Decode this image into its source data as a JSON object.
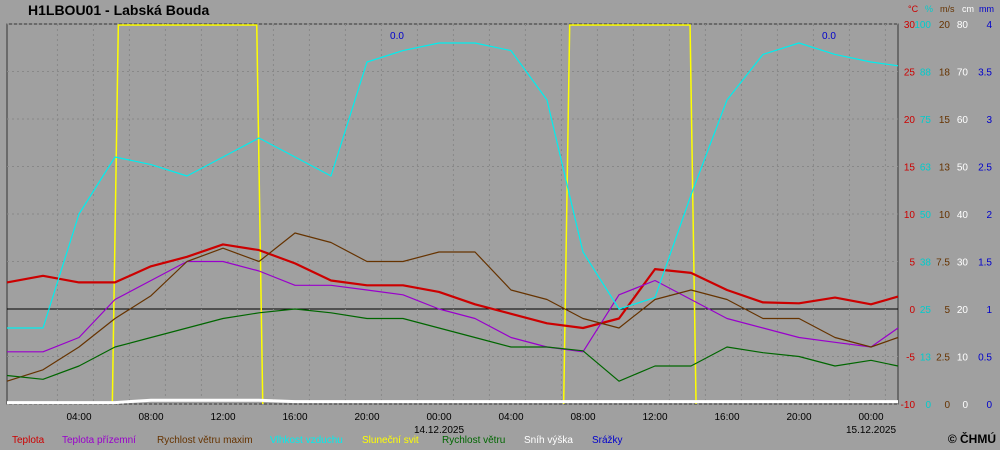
{
  "title": "H1LBOU01 - Labská Bouda",
  "copyright": "© ČHMÚ",
  "units": [
    {
      "label": "°C",
      "color": "#cc0000"
    },
    {
      "label": "%",
      "color": "#00cccc"
    },
    {
      "label": "m/s",
      "color": "#663300"
    },
    {
      "label": "cm",
      "color": "#ffffff"
    },
    {
      "label": "mm",
      "color": "#0000cc"
    }
  ],
  "legend": [
    {
      "label": "Teplota",
      "color": "#cc0000"
    },
    {
      "label": "Teplota přízemní",
      "color": "#9900cc"
    },
    {
      "label": "Rychlost větru maxim",
      "color": "#663300"
    },
    {
      "label": "Vlhkost vzduchu",
      "color": "#00eeee"
    },
    {
      "label": "Sluneční svit",
      "color": "#ffff00"
    },
    {
      "label": "Rychlost větru",
      "color": "#006600"
    },
    {
      "label": "Sníh výška",
      "color": "#ffffff"
    },
    {
      "label": "Srážky",
      "color": "#0000cc"
    }
  ],
  "chart_data": {
    "type": "line",
    "x_tick_labels": [
      "04:00",
      "08:00",
      "12:00",
      "16:00",
      "20:00",
      "00:00",
      "04:00",
      "08:00",
      "12:00",
      "16:00",
      "20:00",
      "00:00"
    ],
    "date_labels": [
      "14.12.2025",
      "15.12.2025"
    ],
    "precip_labels": [
      "0.0",
      "0.0"
    ],
    "axes": {
      "temp_c": {
        "ticks": [
          "30",
          "25",
          "20",
          "15",
          "10",
          "5",
          "0",
          "-5",
          "-10"
        ],
        "color": "#cc0000",
        "range": [
          -10,
          30
        ]
      },
      "humidity_pct": {
        "ticks": [
          "100",
          "88",
          "75",
          "63",
          "50",
          "38",
          "25",
          "13",
          "0"
        ],
        "color": "#00cccc",
        "range": [
          0,
          100
        ]
      },
      "wind_ms": {
        "ticks": [
          "20",
          "18",
          "15",
          "13",
          "10",
          "7.5",
          "5",
          "2.5",
          "0"
        ],
        "color": "#663300",
        "range": [
          0,
          20
        ]
      },
      "snow_cm": {
        "ticks": [
          "80",
          "70",
          "60",
          "50",
          "40",
          "30",
          "20",
          "10",
          "0"
        ],
        "color": "#ffffff",
        "range": [
          0,
          80
        ]
      },
      "precip_mm": {
        "ticks": [
          "4",
          "3.5",
          "3",
          "2.5",
          "2",
          "1.5",
          "1",
          "0.5",
          "0"
        ],
        "color": "#0000cc",
        "range": [
          0,
          4
        ]
      }
    },
    "x_hours": [
      0,
      2,
      4,
      6,
      8,
      10,
      12,
      14,
      16,
      18,
      20,
      22,
      24,
      26,
      28,
      30,
      32,
      34,
      36,
      38,
      40,
      42,
      44,
      46,
      48,
      49.5
    ],
    "series": [
      {
        "name": "Teplota",
        "color": "#cc0000",
        "values": [
          2.8,
          3.5,
          2.8,
          2.8,
          4.5,
          5.5,
          6.8,
          6.2,
          4.8,
          3.0,
          2.5,
          2.5,
          1.8,
          0.5,
          -0.5,
          -1.5,
          -2.0,
          -1.0,
          4.2,
          3.8,
          2.0,
          0.7,
          0.6,
          1.2,
          0.5,
          1.3
        ]
      },
      {
        "name": "Teplota přízemní",
        "color": "#9900cc",
        "values": [
          -4.5,
          -4.5,
          -3.0,
          1.0,
          3.0,
          5.0,
          5.0,
          4.0,
          2.5,
          2.5,
          2.0,
          1.5,
          0.0,
          -1.0,
          -3.0,
          -4.0,
          -4.5,
          1.5,
          3.0,
          1.0,
          -1.0,
          -2.0,
          -3.0,
          -3.5,
          -4.0,
          -2.0
        ]
      },
      {
        "name": "Rychlost větru maxim",
        "color": "#663300",
        "values": [
          1.2,
          1.8,
          3.0,
          4.5,
          5.7,
          7.5,
          8.2,
          7.5,
          9.0,
          8.5,
          7.5,
          7.5,
          8.0,
          8.0,
          6.0,
          5.5,
          4.5,
          4.0,
          5.5,
          6.0,
          5.5,
          4.5,
          4.5,
          3.5,
          3.0,
          3.5
        ]
      },
      {
        "name": "Vlhkost vzduchu",
        "color": "#00eeee",
        "values": [
          20,
          20,
          50,
          65,
          63,
          60,
          65,
          70,
          65,
          60,
          90,
          93,
          95,
          95,
          93,
          80,
          40,
          25,
          28,
          55,
          80,
          92,
          95,
          92,
          90,
          89
        ]
      },
      {
        "name": "Sluneční svit",
        "color": "#ffff00",
        "values": [
          0,
          0,
          0,
          100,
          100,
          100,
          100,
          100,
          0,
          0,
          0,
          0,
          0,
          0,
          0,
          0,
          0,
          100,
          100,
          100,
          0,
          0,
          0,
          0,
          0,
          0
        ]
      },
      {
        "name": "Rychlost větru",
        "color": "#006600",
        "values": [
          1.5,
          1.3,
          2.0,
          3.0,
          3.5,
          4.0,
          4.5,
          4.8,
          5.0,
          4.8,
          4.5,
          4.5,
          4.0,
          3.5,
          3.0,
          3.0,
          2.8,
          1.2,
          2.0,
          2.0,
          3.0,
          2.7,
          2.5,
          2.0,
          2.3,
          2.0
        ]
      },
      {
        "name": "Sníh výška",
        "color": "#ffffff",
        "values": [
          0.3,
          0.3,
          0.3,
          0.3,
          0.8,
          0.8,
          0.8,
          0.8,
          0.5,
          0.5,
          0.5,
          0.5,
          0.5,
          0.5,
          0.5,
          0.5,
          0.5,
          0.5,
          0.5,
          0.5,
          0.5,
          0.5,
          0.5,
          0.5,
          0.5,
          0.5
        ]
      }
    ],
    "sunshine_intervals": [
      [
        6,
        14
      ],
      [
        31,
        38
      ]
    ],
    "grid": true,
    "legend_placement": "bottom"
  }
}
